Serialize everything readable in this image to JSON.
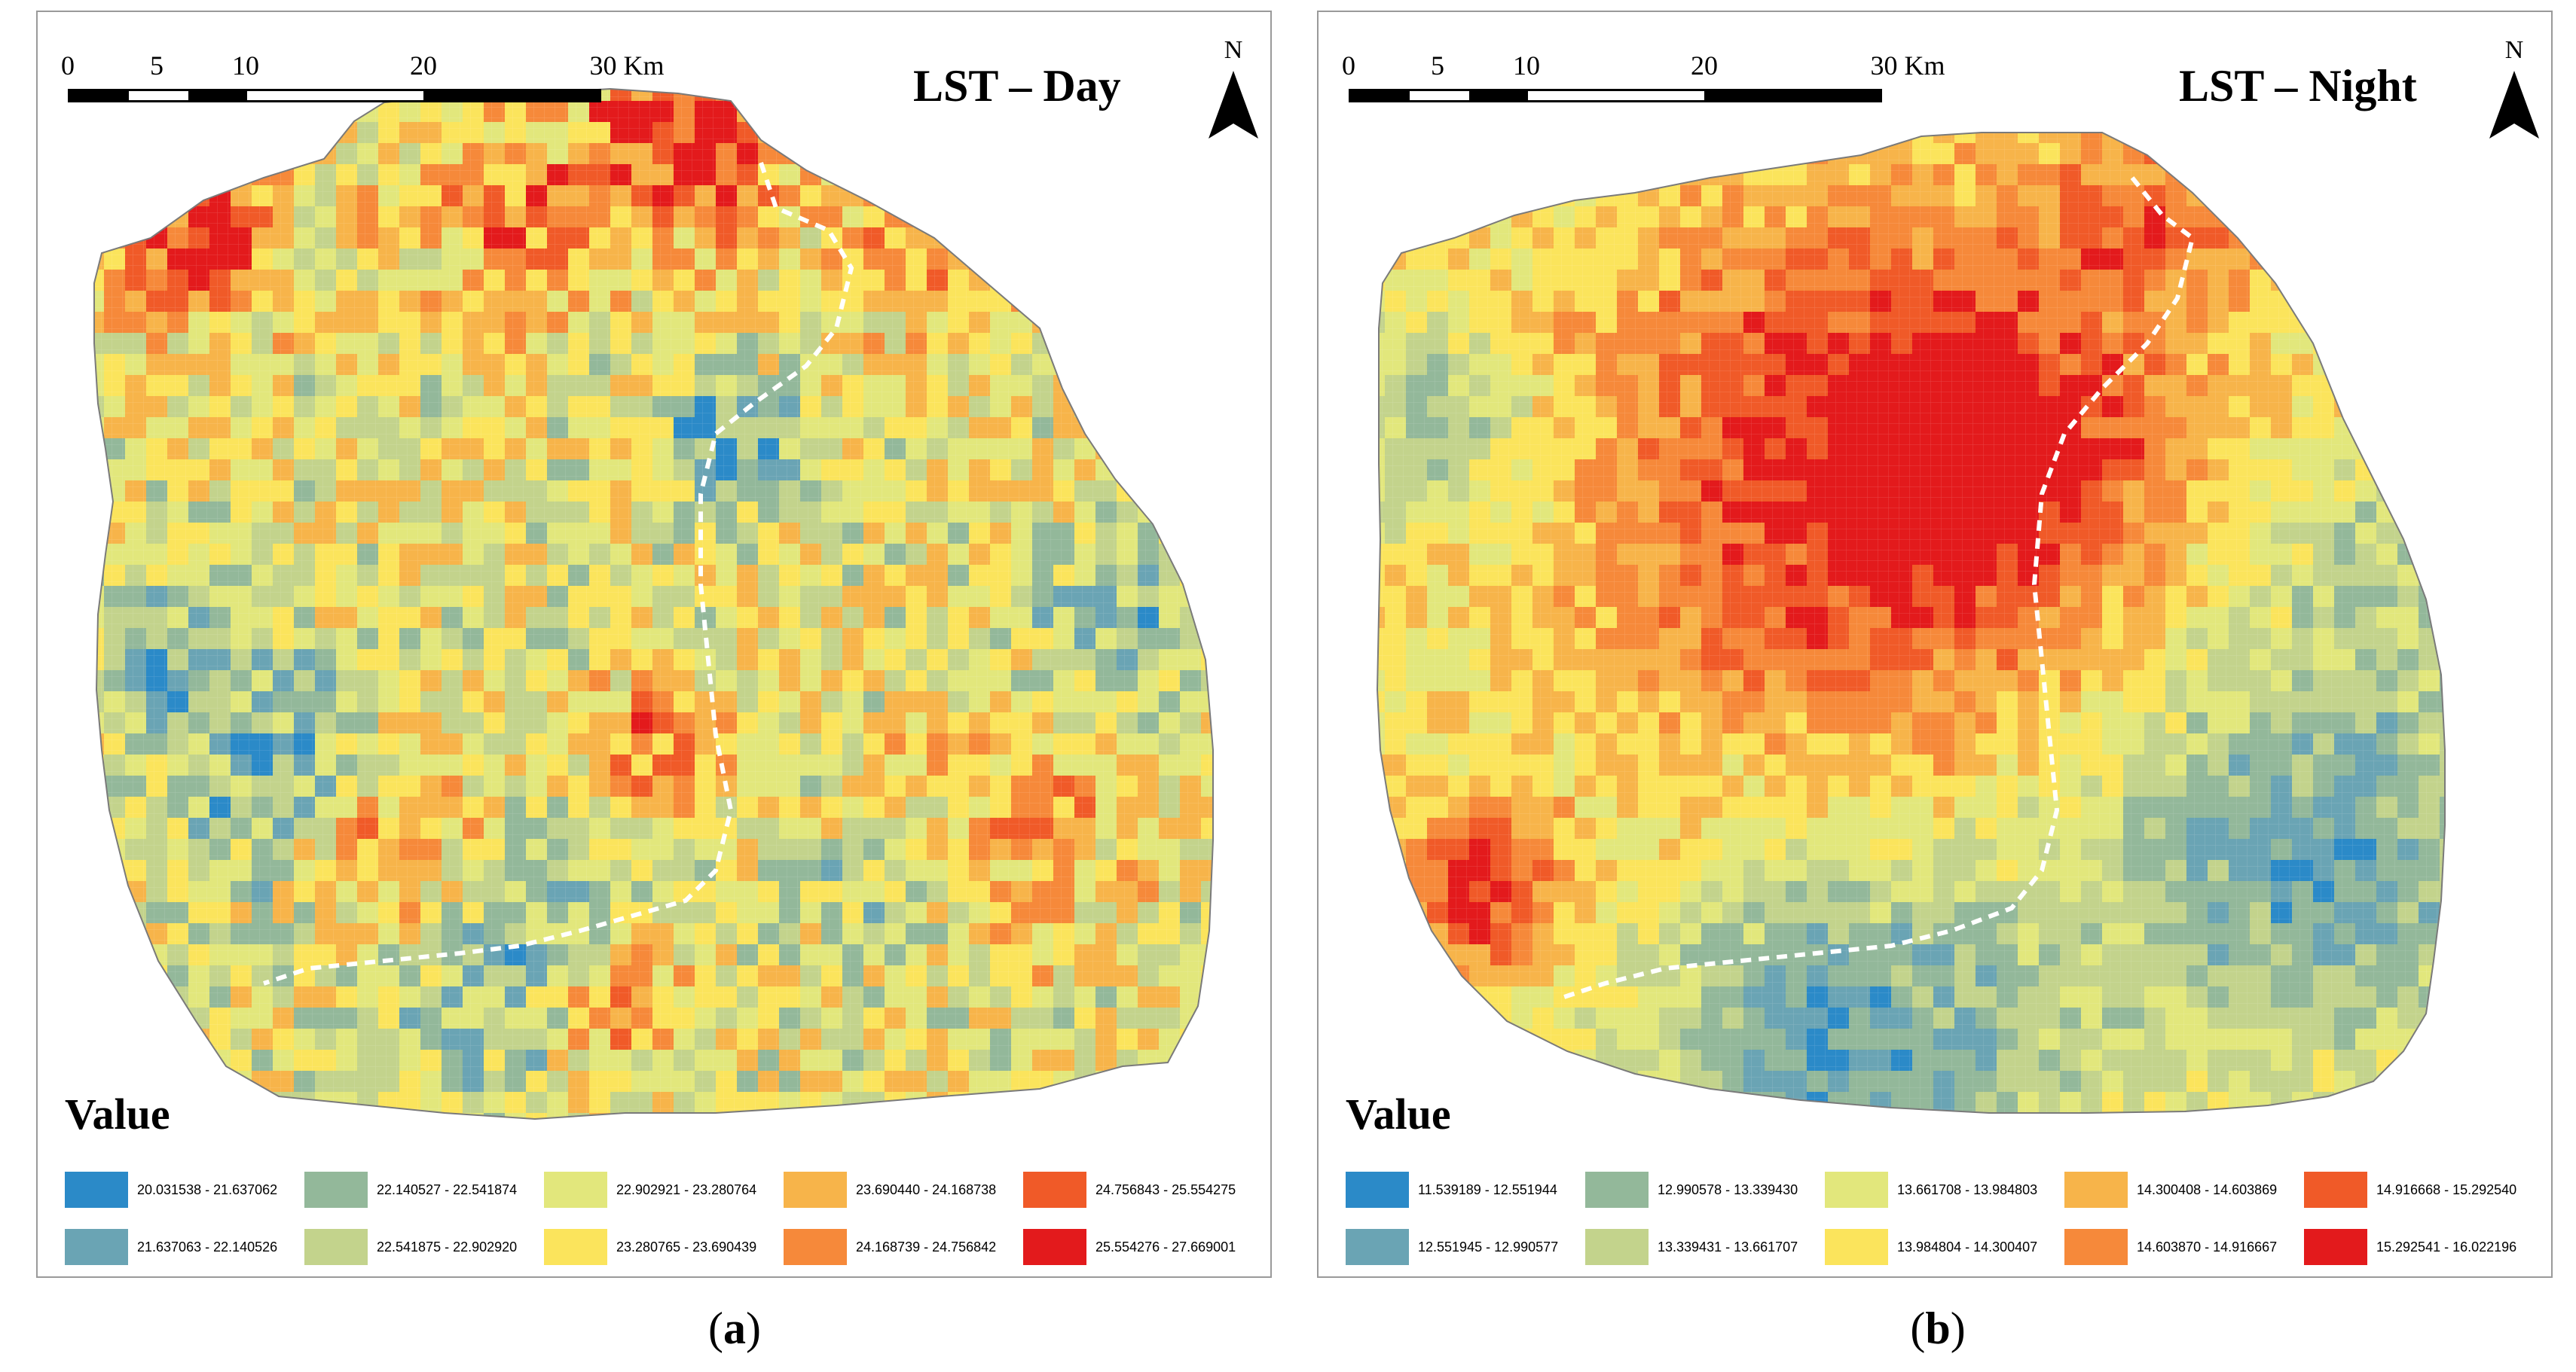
{
  "panels": [
    {
      "id": "a",
      "title": "LST – Day",
      "caption_open": "(",
      "caption_letter": "a",
      "caption_close": ")",
      "scale_ticks": [
        "0",
        "5",
        "10",
        "20",
        "30 Km"
      ],
      "north_label": "N",
      "legend_title": "Value",
      "legend": [
        [
          {
            "label": "20.031538 - 21.637062",
            "color": "#2b8ac8"
          },
          {
            "label": "22.140527 - 22.541874",
            "color": "#93b89a"
          },
          {
            "label": "22.902921 - 23.280764",
            "color": "#e2e77c"
          },
          {
            "label": "23.690440 - 24.168738",
            "color": "#f7b44a"
          },
          {
            "label": "24.756843 - 25.554275",
            "color": "#f05a28"
          }
        ],
        [
          {
            "label": "21.637063 - 22.140526",
            "color": "#6aa4b4"
          },
          {
            "label": "22.541875 - 22.902920",
            "color": "#c3d38c"
          },
          {
            "label": "23.280765 - 23.690439",
            "color": "#fbe45c"
          },
          {
            "label": "24.168739 - 24.756842",
            "color": "#f6893a"
          },
          {
            "label": "25.554276 - 27.669001",
            "color": "#e31a1c"
          }
        ]
      ]
    },
    {
      "id": "b",
      "title": "LST – Night",
      "caption_open": "(",
      "caption_letter": "b",
      "caption_close": ")",
      "scale_ticks": [
        "0",
        "5",
        "10",
        "20",
        "30 Km"
      ],
      "north_label": "N",
      "legend_title": "Value",
      "legend": [
        [
          {
            "label": "11.539189 - 12.551944",
            "color": "#2b8ac8"
          },
          {
            "label": "12.990578 - 13.339430",
            "color": "#93b89a"
          },
          {
            "label": "13.661708 - 13.984803",
            "color": "#e2e77c"
          },
          {
            "label": "14.300408 - 14.603869",
            "color": "#f7b44a"
          },
          {
            "label": "14.916668 - 15.292540",
            "color": "#f05a28"
          }
        ],
        [
          {
            "label": "12.551945 - 12.990577",
            "color": "#6aa4b4"
          },
          {
            "label": "13.339431 - 13.661707",
            "color": "#c3d38c"
          },
          {
            "label": "13.984804 - 14.300407",
            "color": "#fbe45c"
          },
          {
            "label": "14.603870 - 14.916667",
            "color": "#f6893a"
          },
          {
            "label": "15.292541 - 16.022196",
            "color": "#e31a1c"
          }
        ]
      ]
    }
  ]
}
